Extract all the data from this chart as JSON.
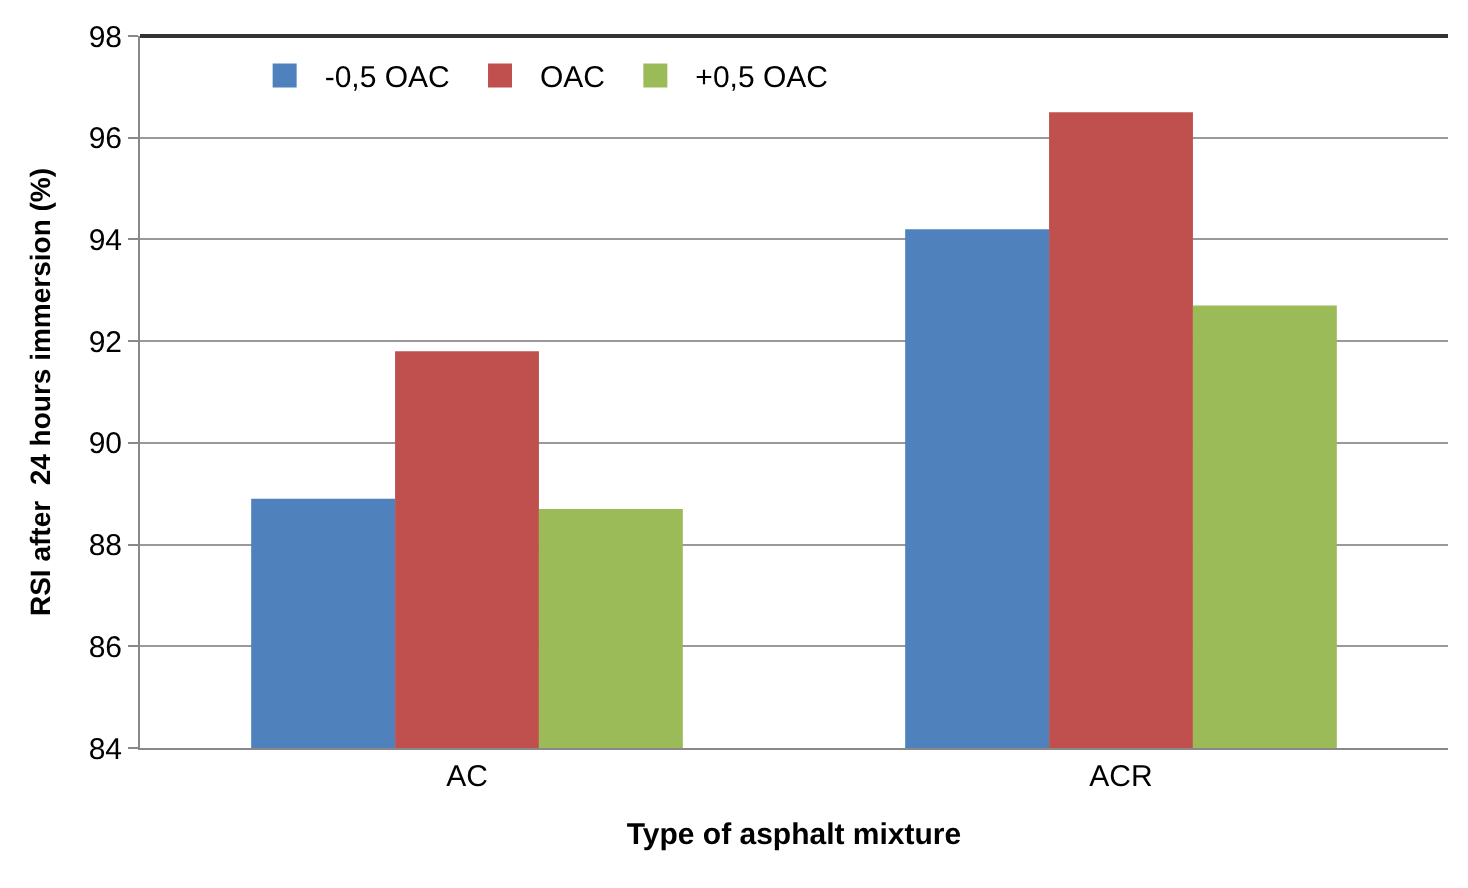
{
  "chart_data": {
    "type": "bar",
    "xlabel": "Type of asphalt mixture",
    "ylabel": "RSI after  24 hours immersion (%)",
    "categories": [
      "AC",
      "ACR"
    ],
    "series": [
      {
        "name": "-0,5 OAC",
        "color": "#4f81bd",
        "values": [
          88.9,
          94.2
        ]
      },
      {
        "name": "OAC",
        "color": "#c0504d",
        "values": [
          91.8,
          96.5
        ]
      },
      {
        "name": "+0,5 OAC",
        "color": "#9bbb59",
        "values": [
          88.7,
          92.7
        ]
      }
    ],
    "ylim": [
      84,
      98
    ],
    "yticks": [
      84,
      86,
      88,
      90,
      92,
      94,
      96,
      98
    ],
    "grid": "y",
    "legend": "top left"
  }
}
